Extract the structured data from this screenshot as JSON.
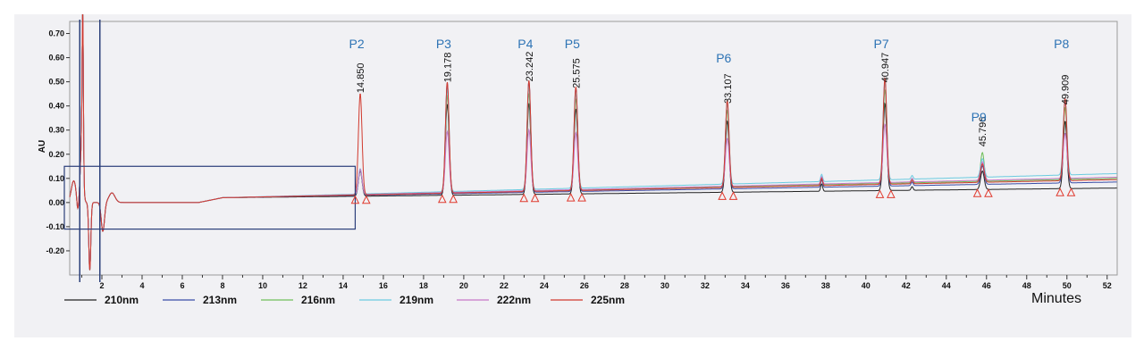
{
  "chart_data": {
    "type": "line",
    "title": "",
    "xlabel": "Minutes",
    "ylabel": "AU",
    "xlim": [
      0.4,
      52.5
    ],
    "ylim": [
      -0.3,
      0.75
    ],
    "x_ticks": [
      2,
      4,
      6,
      8,
      10,
      12,
      14,
      16,
      18,
      20,
      22,
      24,
      26,
      28,
      30,
      32,
      34,
      36,
      38,
      40,
      42,
      44,
      46,
      48,
      50,
      52
    ],
    "y_ticks": [
      -0.2,
      -0.1,
      0.0,
      0.1,
      0.2,
      0.3,
      0.4,
      0.5,
      0.6,
      0.7
    ],
    "y_tick_labels": [
      "-0.20",
      "-0.10",
      "0.00",
      "0.10",
      "0.20",
      "0.30",
      "0.40",
      "0.50",
      "0.60",
      "0.70"
    ],
    "grid": false,
    "legend_position": "bottom",
    "series": [
      {
        "name": "210nm",
        "color": "#222222"
      },
      {
        "name": "213nm",
        "color": "#3a4ea6"
      },
      {
        "name": "216nm",
        "color": "#6fbf5a"
      },
      {
        "name": "219nm",
        "color": "#6ccbe0"
      },
      {
        "name": "222nm",
        "color": "#c878c8"
      },
      {
        "name": "225nm",
        "color": "#d13a2e"
      }
    ],
    "series_baseline_drift_end": [
      0.06,
      0.085,
      0.1,
      0.12,
      0.105,
      0.095
    ],
    "peaks": [
      {
        "name": "P2",
        "rt": "14.850",
        "x": 14.85,
        "height": 0.42
      },
      {
        "name": "P3",
        "rt": "19.178",
        "x": 19.178,
        "height": 0.46
      },
      {
        "name": "P4",
        "rt": "23.242",
        "x": 23.242,
        "height": 0.46
      },
      {
        "name": "P5",
        "rt": "25.575",
        "x": 25.575,
        "height": 0.43
      },
      {
        "name": "P6",
        "rt": "33.107",
        "x": 33.107,
        "height": 0.36
      },
      {
        "name": "P7",
        "rt": "40.947",
        "x": 40.947,
        "height": 0.44
      },
      {
        "name": "P9",
        "rt": "45.796",
        "x": 45.796,
        "height": 0.17
      },
      {
        "name": "P8",
        "rt": "49.909",
        "x": 49.909,
        "height": 0.34
      }
    ],
    "highlight_box": {
      "x": [
        0.4,
        14.6
      ],
      "y": [
        -0.11,
        0.15
      ]
    },
    "marker_lines_x": [
      0.9,
      1.9
    ]
  }
}
